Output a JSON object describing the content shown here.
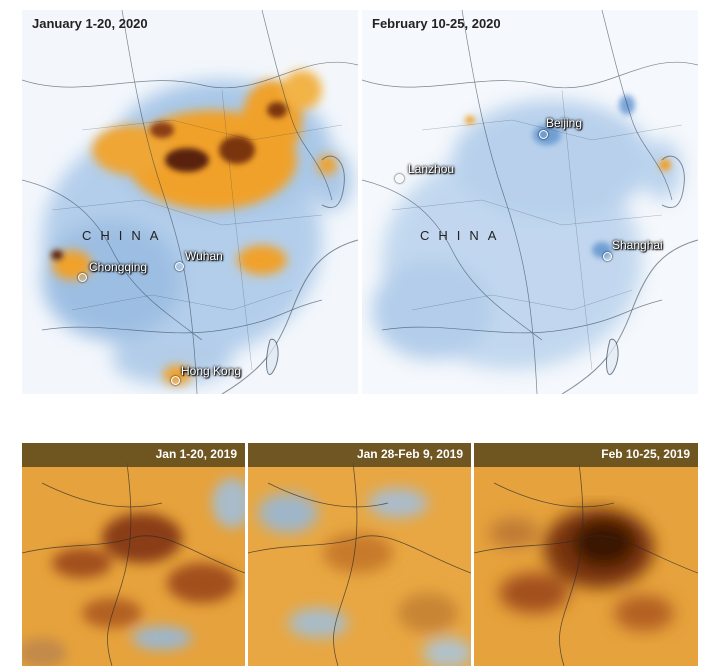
{
  "top_maps": [
    {
      "title": "January 1-20, 2020",
      "country_label": "CHINA",
      "cities": [
        "Chongqing",
        "Wuhan",
        "Hong Kong"
      ]
    },
    {
      "title": "February 10-25, 2020",
      "country_label": "CHINA",
      "cities": [
        "Beijing",
        "Lanzhou",
        "Shanghai"
      ]
    }
  ],
  "bottom_maps": [
    {
      "title": "Jan 1-20, 2019"
    },
    {
      "title": "Jan 28-Feb 9, 2019"
    },
    {
      "title": "Feb 10-25, 2019"
    }
  ],
  "colors": {
    "low": "#eef4fb",
    "mid": "#7fa9d6",
    "high": "#f0a12a",
    "peak": "#3b1606",
    "bottom_base": "#e6a23c"
  }
}
